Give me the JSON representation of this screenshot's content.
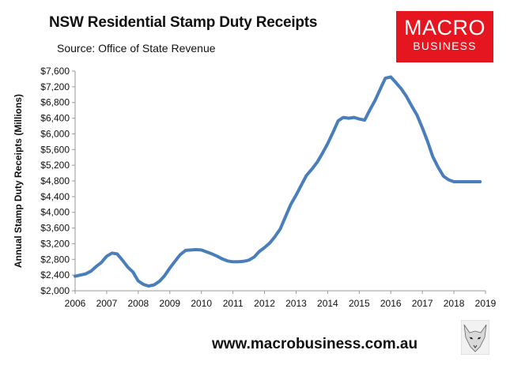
{
  "header": {
    "title": "NSW Residential Stamp Duty Receipts",
    "subtitle": "Source: Office of State Revenue"
  },
  "logo": {
    "line1": "MACRO",
    "line2": "BUSINESS",
    "bg_color": "#e5161f"
  },
  "footer": {
    "url": "www.macrobusiness.com.au"
  },
  "chart_data": {
    "type": "line",
    "title": "NSW Residential Stamp Duty Receipts",
    "ylabel": "Annual Stamp Duty Receipts (Millions)",
    "xlabel": "",
    "xlim": [
      2006,
      2019
    ],
    "ylim": [
      2000,
      7600
    ],
    "x_ticks": [
      2006,
      2007,
      2008,
      2009,
      2010,
      2011,
      2012,
      2013,
      2014,
      2015,
      2016,
      2017,
      2018,
      2019
    ],
    "y_ticks": [
      2000,
      2400,
      2800,
      3200,
      3600,
      4000,
      4400,
      4800,
      5200,
      5600,
      6000,
      6400,
      6800,
      7200,
      7600
    ],
    "y_tick_labels": [
      "$2,000",
      "$2,400",
      "$2,800",
      "$3,200",
      "$3,600",
      "$4,000",
      "$4,400",
      "$4,800",
      "$5,200",
      "$5,600",
      "$6,000",
      "$6,400",
      "$6,800",
      "$7,200",
      "$7,600"
    ],
    "grid": false,
    "legend": "none",
    "series": [
      {
        "color": "#4a7ebb",
        "x": [
          2006.0,
          2006.17,
          2006.33,
          2006.5,
          2006.67,
          2006.83,
          2007.0,
          2007.17,
          2007.33,
          2007.5,
          2007.67,
          2007.83,
          2008.0,
          2008.17,
          2008.33,
          2008.5,
          2008.67,
          2008.83,
          2009.0,
          2009.17,
          2009.33,
          2009.5,
          2009.67,
          2009.83,
          2010.0,
          2010.17,
          2010.33,
          2010.5,
          2010.67,
          2010.83,
          2011.0,
          2011.17,
          2011.33,
          2011.5,
          2011.67,
          2011.83,
          2012.0,
          2012.17,
          2012.33,
          2012.5,
          2012.67,
          2012.83,
          2013.0,
          2013.17,
          2013.33,
          2013.5,
          2013.67,
          2013.83,
          2014.0,
          2014.17,
          2014.33,
          2014.5,
          2014.67,
          2014.83,
          2015.0,
          2015.17,
          2015.33,
          2015.5,
          2015.67,
          2015.83,
          2016.0,
          2016.17,
          2016.33,
          2016.5,
          2016.67,
          2016.83,
          2017.0,
          2017.17,
          2017.33,
          2017.5,
          2017.67,
          2017.83,
          2018.0,
          2018.17,
          2018.33,
          2018.5,
          2018.67,
          2018.83
        ],
        "y": [
          2370,
          2400,
          2430,
          2500,
          2620,
          2720,
          2880,
          2960,
          2940,
          2780,
          2600,
          2480,
          2250,
          2160,
          2120,
          2150,
          2240,
          2380,
          2580,
          2760,
          2920,
          3030,
          3040,
          3050,
          3040,
          2990,
          2940,
          2880,
          2810,
          2760,
          2740,
          2740,
          2750,
          2780,
          2860,
          3000,
          3100,
          3220,
          3380,
          3580,
          3900,
          4200,
          4440,
          4700,
          4940,
          5100,
          5280,
          5500,
          5750,
          6040,
          6330,
          6420,
          6400,
          6420,
          6380,
          6350,
          6600,
          6850,
          7150,
          7420,
          7450,
          7300,
          7150,
          6950,
          6700,
          6480,
          6150,
          5800,
          5420,
          5150,
          4920,
          4830,
          4780,
          4780,
          4780,
          4780,
          4780,
          4780
        ]
      }
    ]
  }
}
